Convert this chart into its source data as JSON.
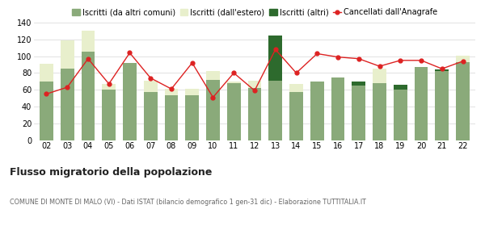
{
  "years": [
    "02",
    "03",
    "04",
    "05",
    "06",
    "07",
    "08",
    "09",
    "10",
    "11",
    "12",
    "13",
    "14",
    "15",
    "16",
    "17",
    "18",
    "19",
    "20",
    "21",
    "22"
  ],
  "iscritti_altri_comuni": [
    70,
    85,
    105,
    60,
    92,
    57,
    53,
    53,
    72,
    68,
    62,
    71,
    57,
    70,
    75,
    65,
    68,
    60,
    87,
    82,
    93
  ],
  "iscritti_estero": [
    21,
    34,
    25,
    7,
    0,
    14,
    8,
    8,
    10,
    2,
    9,
    0,
    10,
    0,
    0,
    0,
    17,
    0,
    0,
    0,
    8
  ],
  "iscritti_altri": [
    0,
    0,
    0,
    0,
    0,
    0,
    0,
    0,
    0,
    0,
    0,
    54,
    0,
    0,
    0,
    5,
    0,
    6,
    0,
    2,
    0
  ],
  "cancellati": [
    55,
    63,
    97,
    67,
    104,
    74,
    61,
    92,
    51,
    80,
    59,
    108,
    80,
    103,
    99,
    97,
    88,
    95,
    95,
    85,
    94
  ],
  "color_altri_comuni": "#8aaa7a",
  "color_estero": "#e8efcc",
  "color_altri": "#2d6a2d",
  "color_cancellati": "#dd2222",
  "ylim": [
    0,
    140
  ],
  "yticks": [
    0,
    20,
    40,
    60,
    80,
    100,
    120,
    140
  ],
  "title": "Flusso migratorio della popolazione",
  "subtitle": "COMUNE DI MONTE DI MALO (VI) - Dati ISTAT (bilancio demografico 1 gen-31 dic) - Elaborazione TUTTITALIA.IT",
  "legend_labels": [
    "Iscritti (da altri comuni)",
    "Iscritti (dall'estero)",
    "Iscritti (altri)",
    "Cancellati dall'Anagrafe"
  ],
  "background_color": "#ffffff",
  "grid_color": "#dddddd"
}
